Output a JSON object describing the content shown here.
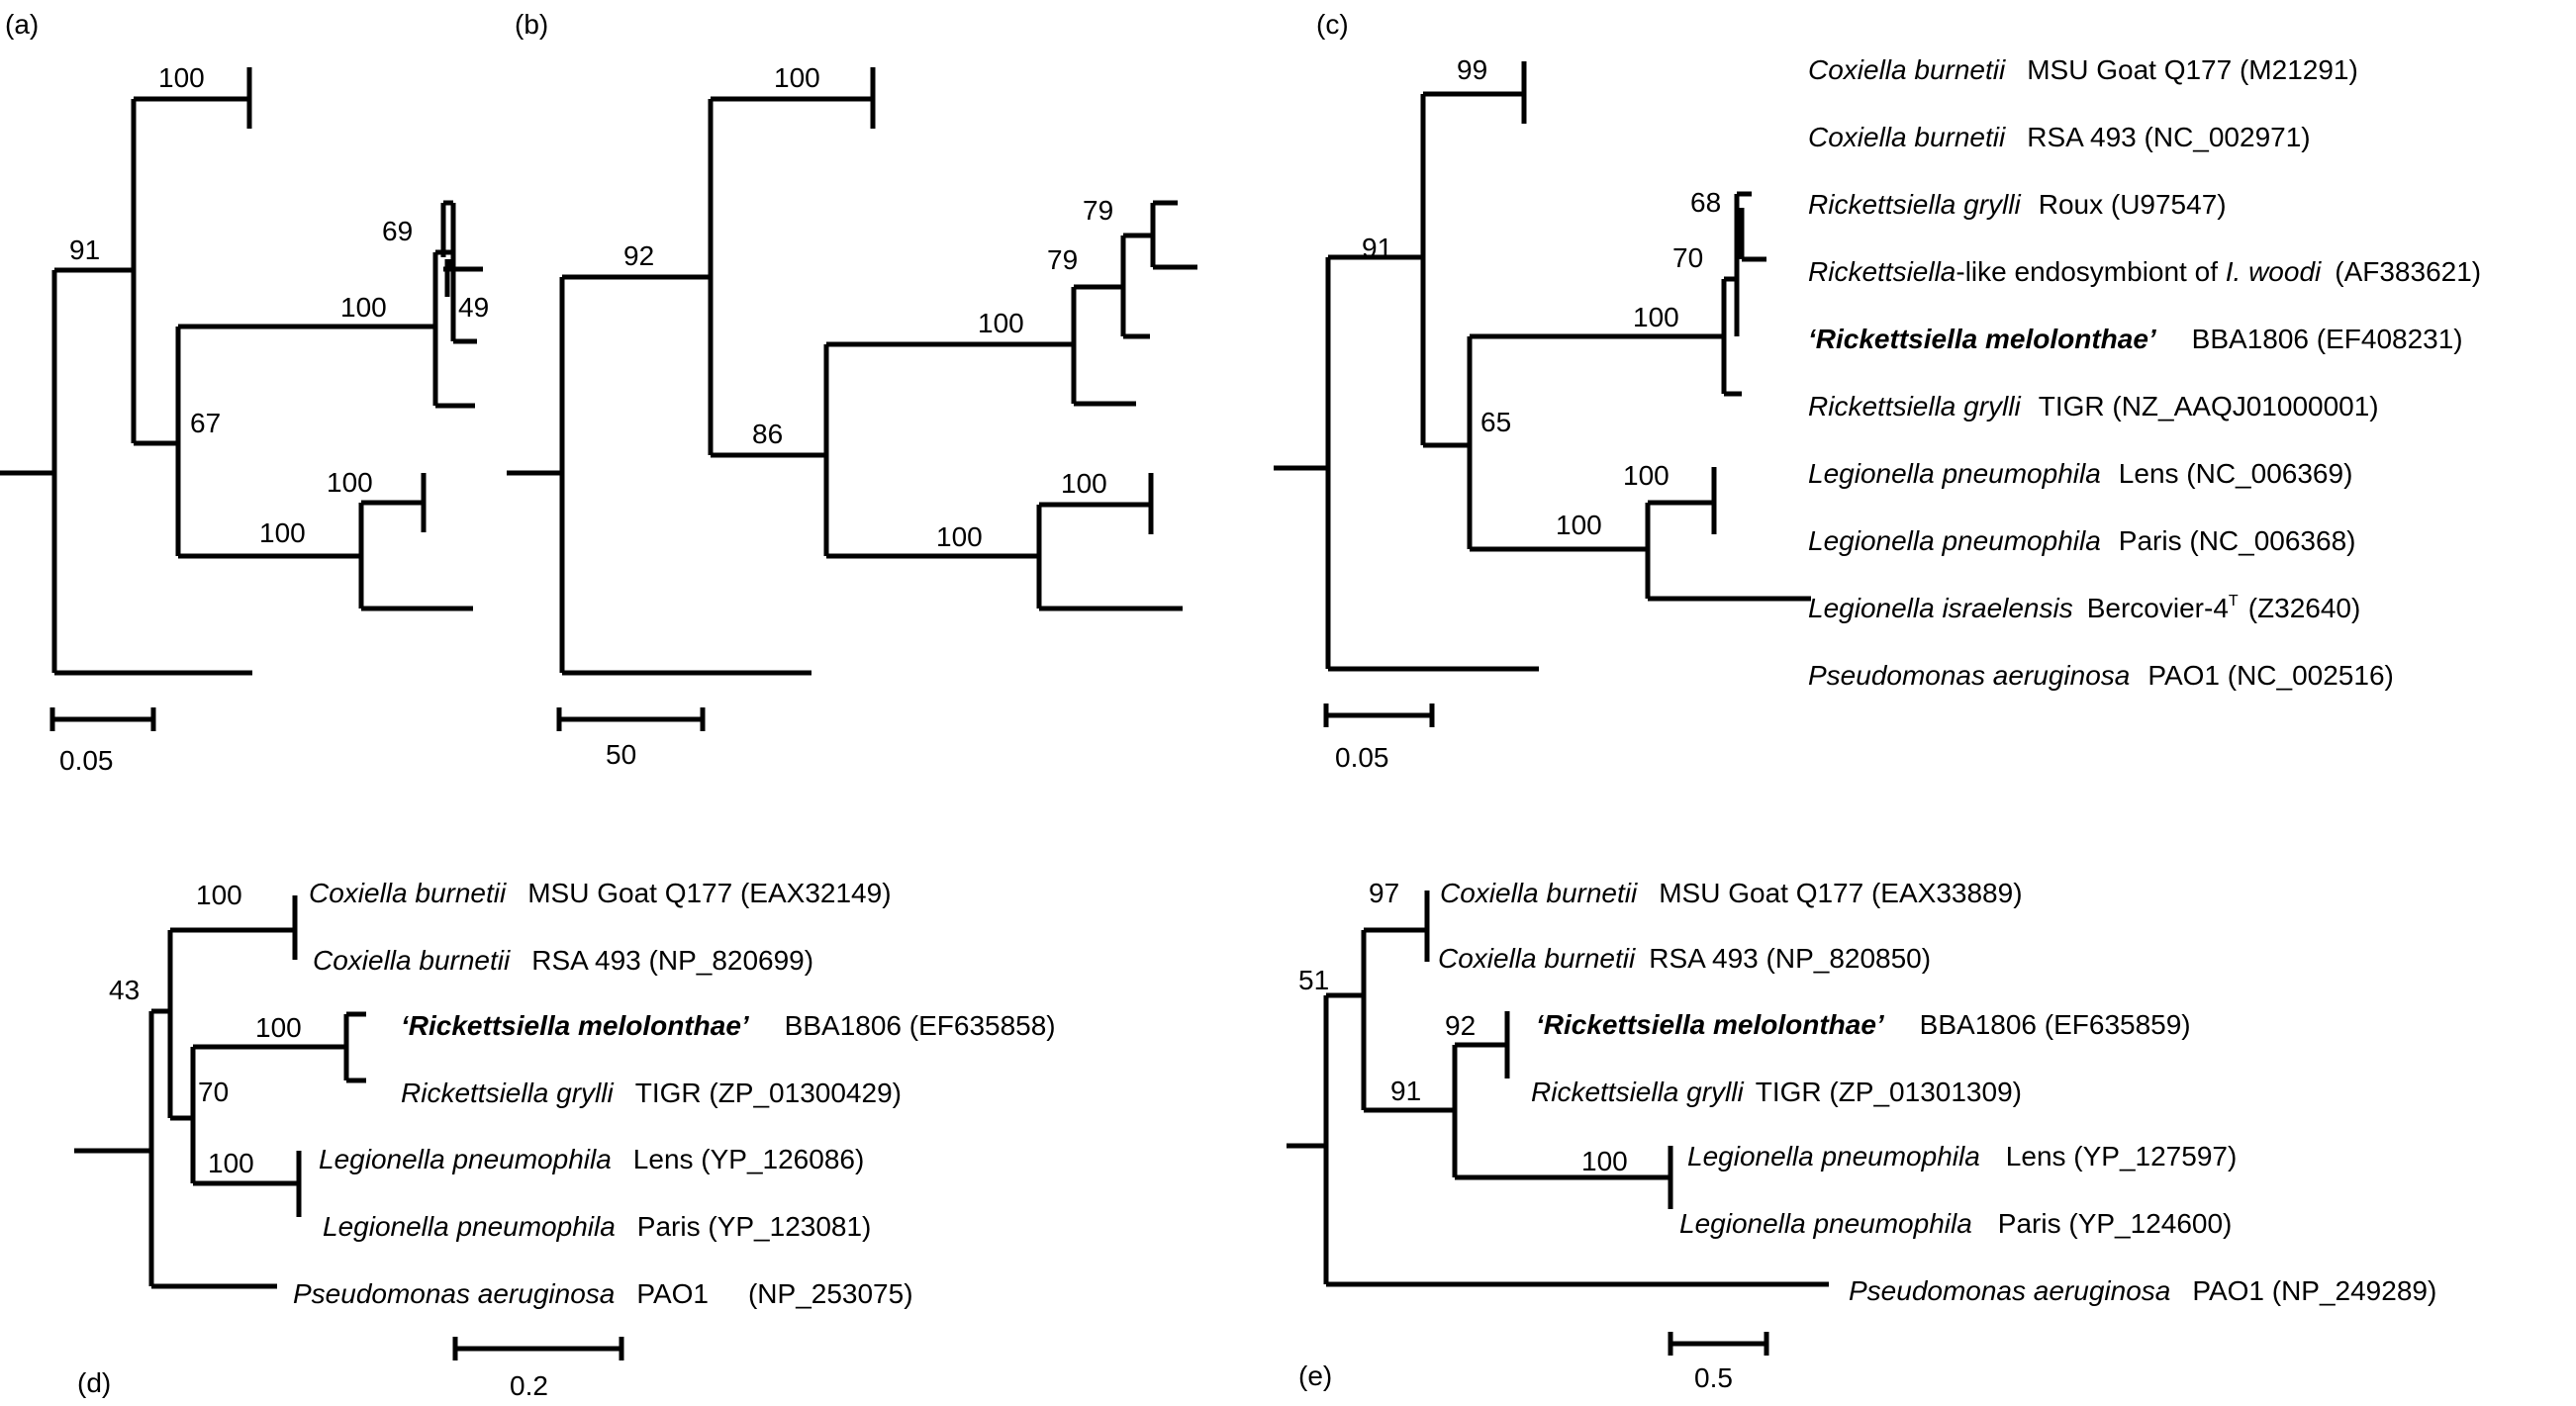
{
  "panels": {
    "a": {
      "panel_label": "(a)",
      "scale_label": "0.05",
      "bootstrap": [
        "100",
        "91",
        "69",
        "100",
        "49",
        "67",
        "100",
        "100"
      ]
    },
    "b": {
      "panel_label": "(b)",
      "scale_label": "50",
      "bootstrap": [
        "100",
        "92",
        "79",
        "79",
        "100",
        "86",
        "100",
        "100"
      ]
    },
    "c": {
      "panel_label": "(c)",
      "scale_label": "0.05",
      "bootstrap": [
        "99",
        "91",
        "68",
        "70",
        "100",
        "65",
        "100",
        "100"
      ],
      "taxa": [
        {
          "italic": "Coxiella burnetii",
          "rest": "MSU Goat Q177 (M21291)"
        },
        {
          "italic": "Coxiella burnetii",
          "rest": "RSA 493 (NC_002971)"
        },
        {
          "italic": "Rickettsiella grylli",
          "rest": "Roux (U97547)"
        },
        {
          "italic": "Rickettsiella",
          "mid": "-like endosymbiont of ",
          "italic2": "I. woodi",
          "rest": "(AF383621)"
        },
        {
          "bold": "‘Rickettsiella melolonthae’",
          "rest": "BBA1806 (EF408231)"
        },
        {
          "italic": "Rickettsiella grylli",
          "rest": "TIGR (NZ_AAQJ01000001)"
        },
        {
          "italic": "Legionella pneumophila",
          "rest": "Lens (NC_006369)"
        },
        {
          "italic": "Legionella pneumophila",
          "rest": "Paris (NC_006368)"
        },
        {
          "italic": "Legionella israelensis",
          "rest": "Bercovier-4",
          "sup": "T",
          "rest2": "(Z32640)"
        },
        {
          "italic": "Pseudomonas aeruginosa",
          "rest": "PAO1 (NC_002516)"
        }
      ]
    },
    "d": {
      "panel_label": "(d)",
      "scale_label": "0.2",
      "bootstrap": [
        "100",
        "43",
        "100",
        "70",
        "100"
      ],
      "taxa": [
        {
          "italic": "Coxiella burnetii",
          "rest": "MSU Goat Q177 (EAX32149)"
        },
        {
          "italic": "Coxiella burnetii",
          "rest": "RSA 493 (NP_820699)"
        },
        {
          "bold": "‘Rickettsiella melolonthae’",
          "rest": "BBA1806 (EF635858)"
        },
        {
          "italic": "Rickettsiella grylli",
          "rest": "TIGR (ZP_01300429)"
        },
        {
          "italic": "Legionella pneumophila",
          "rest": "Lens (YP_126086)"
        },
        {
          "italic": "Legionella pneumophila",
          "rest": "Paris (YP_123081)"
        },
        {
          "italic": "Pseudomonas aeruginosa",
          "rest": "PAO1",
          "rest2": "(NP_253075)"
        }
      ]
    },
    "e": {
      "panel_label": "(e)",
      "scale_label": "0.5",
      "bootstrap": [
        "97",
        "51",
        "92",
        "91",
        "100"
      ],
      "taxa": [
        {
          "italic": "Coxiella burnetii",
          "rest": "MSU Goat Q177 (EAX33889)"
        },
        {
          "italic": "Coxiella burnetii",
          "rest": "RSA 493 (NP_820850)"
        },
        {
          "bold": "‘Rickettsiella melolonthae’",
          "rest": "BBA1806 (EF635859)"
        },
        {
          "italic": "Rickettsiella grylli",
          "rest": "TIGR (ZP_01301309)"
        },
        {
          "italic": "Legionella pneumophila",
          "rest": "Lens (YP_127597)"
        },
        {
          "italic": "Legionella pneumophila",
          "rest": "Paris (YP_124600)"
        },
        {
          "italic": "Pseudomonas aeruginosa",
          "rest": "PAO1 (NP_249289)"
        }
      ]
    }
  }
}
